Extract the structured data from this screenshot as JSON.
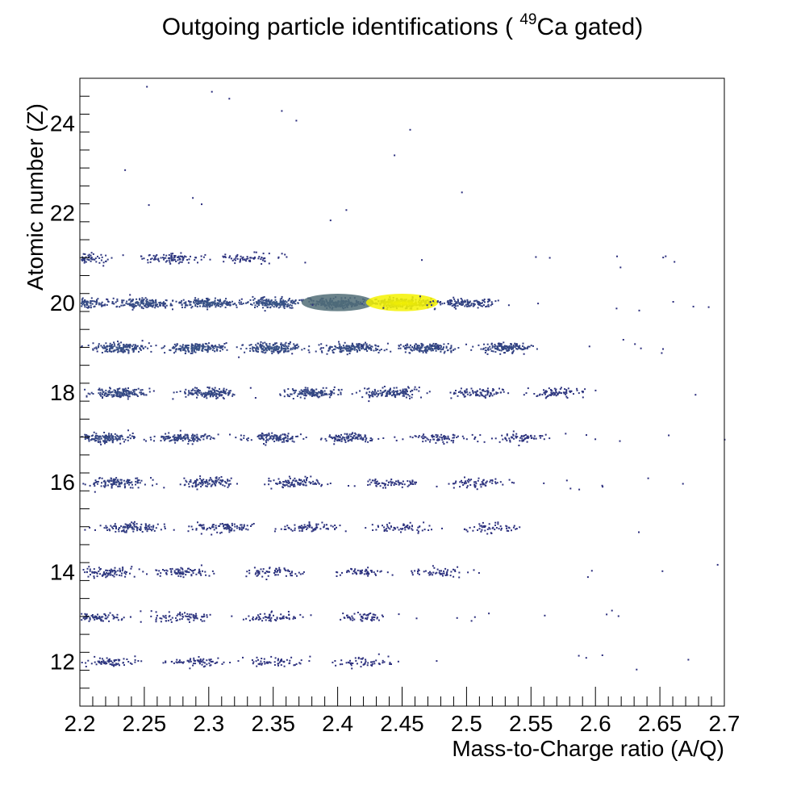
{
  "title": {
    "prefix": "Outgoing particle identifications (",
    "superscript": "49",
    "suffix": "Ca gated)"
  },
  "colors": {
    "axis": "#000000",
    "background": "#ffffff",
    "low": "#2b2d7d",
    "mid": "#3a5a88",
    "high": "#f5f200"
  },
  "chart_data": {
    "type": "heatmap",
    "title": "Outgoing particle identifications ( 49Ca gated)",
    "xlabel": "Mass-to-Charge ratio (A/Q)",
    "ylabel": "Atomic number (Z)",
    "xlim": [
      2.2,
      2.7
    ],
    "ylim": [
      11.0,
      25.0
    ],
    "x_ticks": [
      "2.2",
      "2.25",
      "2.3",
      "2.35",
      "2.4",
      "2.45",
      "2.5",
      "2.55",
      "2.6",
      "2.65",
      "2.7"
    ],
    "y_ticks": [
      "12",
      "14",
      "16",
      "18",
      "20",
      "22",
      "24"
    ],
    "clusters": [
      {
        "z": 21,
        "aq": [
          2.2,
          2.27,
          2.33
        ],
        "intensity": [
          0.25,
          0.2,
          0.08
        ]
      },
      {
        "z": 20,
        "aq": [
          2.2,
          2.25,
          2.3,
          2.35,
          2.4,
          2.45,
          2.5
        ],
        "intensity": [
          0.45,
          0.5,
          0.55,
          0.6,
          0.65,
          1.0,
          0.35
        ]
      },
      {
        "z": 19,
        "aq": [
          2.23,
          2.29,
          2.35,
          2.41,
          2.47,
          2.53
        ],
        "intensity": [
          0.5,
          0.55,
          0.55,
          0.5,
          0.45,
          0.4
        ]
      },
      {
        "z": 18,
        "aq": [
          2.23,
          2.3,
          2.38,
          2.44,
          2.51,
          2.57
        ],
        "intensity": [
          0.45,
          0.4,
          0.4,
          0.35,
          0.2,
          0.15
        ]
      },
      {
        "z": 17,
        "aq": [
          2.22,
          2.28,
          2.35,
          2.41,
          2.48,
          2.54
        ],
        "intensity": [
          0.4,
          0.35,
          0.3,
          0.25,
          0.15,
          0.1
        ]
      },
      {
        "z": 16,
        "aq": [
          2.23,
          2.3,
          2.37,
          2.44,
          2.51
        ],
        "intensity": [
          0.3,
          0.25,
          0.2,
          0.12,
          0.08
        ]
      },
      {
        "z": 15,
        "aq": [
          2.24,
          2.31,
          2.38,
          2.45,
          2.52
        ],
        "intensity": [
          0.25,
          0.2,
          0.12,
          0.08,
          0.05
        ]
      },
      {
        "z": 14,
        "aq": [
          2.22,
          2.28,
          2.35,
          2.42,
          2.48
        ],
        "intensity": [
          0.2,
          0.15,
          0.1,
          0.06,
          0.05
        ]
      },
      {
        "z": 13,
        "aq": [
          2.21,
          2.28,
          2.35,
          2.42
        ],
        "intensity": [
          0.2,
          0.12,
          0.1,
          0.05
        ]
      },
      {
        "z": 12,
        "aq": [
          2.22,
          2.29,
          2.35,
          2.42
        ],
        "intensity": [
          0.15,
          0.1,
          0.06,
          0.04
        ]
      }
    ]
  }
}
